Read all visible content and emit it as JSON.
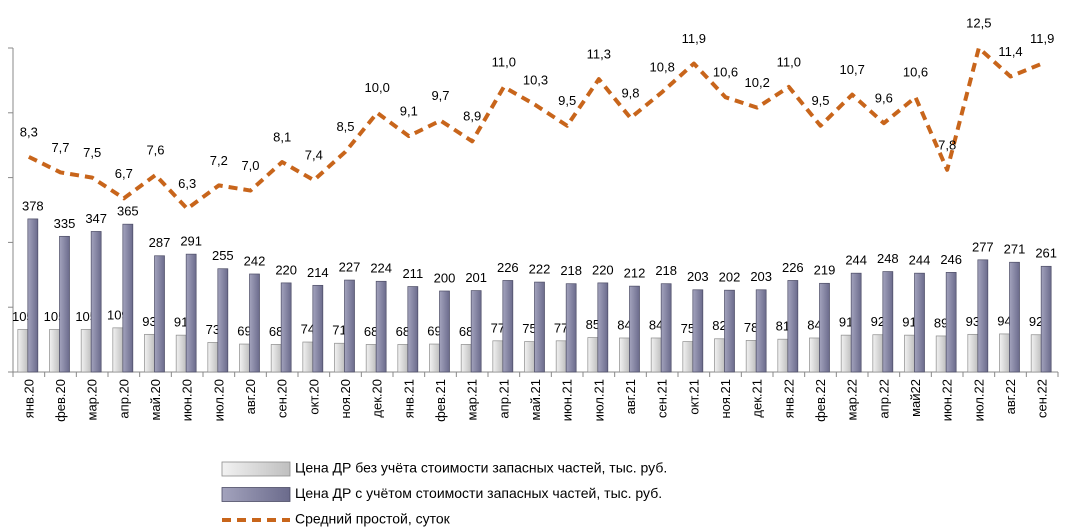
{
  "chart_data": {
    "type": "bar",
    "categories": [
      "янв.20",
      "фев.20",
      "мар.20",
      "апр.20",
      "май.20",
      "июн.20",
      "июл.20",
      "авг.20",
      "сен.20",
      "окт.20",
      "ноя.20",
      "дек.20",
      "янв.21",
      "фев.21",
      "мар.21",
      "апр.21",
      "май.21",
      "июн.21",
      "июл.21",
      "авг.21",
      "сен.21",
      "окт.21",
      "ноя.21",
      "дек.21",
      "янв.22",
      "фев.22",
      "мар.22",
      "апр.22",
      "май22",
      "июн.22",
      "июл.22",
      "авг.22",
      "сен.22"
    ],
    "series": [
      {
        "name": "Цена ДР без учёта стоимости запасных частей, тыс. руб.",
        "color": "#d9d9d9",
        "values": [
          105,
          105,
          105,
          109,
          93,
          91,
          73,
          69,
          68,
          74,
          71,
          68,
          68,
          69,
          68,
          77,
          75,
          77,
          85,
          84,
          84,
          75,
          82,
          78,
          81,
          84,
          91,
          92,
          91,
          89,
          93,
          94,
          92
        ]
      },
      {
        "name": "Цена ДР с учётом стоимости запасных частей, тыс. руб.",
        "color": "#8585a3",
        "values": [
          378,
          335,
          347,
          365,
          287,
          291,
          255,
          242,
          220,
          214,
          227,
          224,
          211,
          200,
          201,
          226,
          222,
          218,
          220,
          212,
          218,
          203,
          202,
          203,
          226,
          219,
          244,
          248,
          244,
          246,
          277,
          271,
          261
        ]
      },
      {
        "name": "Средний простой, суток",
        "type": "line",
        "axis": "y2",
        "color": "#c8651b",
        "values": [
          8.3,
          7.7,
          7.5,
          6.7,
          7.6,
          6.3,
          7.2,
          7.0,
          8.1,
          7.4,
          8.5,
          10.0,
          9.1,
          9.7,
          8.9,
          11.0,
          10.3,
          9.5,
          11.3,
          9.8,
          10.8,
          11.9,
          10.6,
          10.2,
          11.0,
          9.5,
          10.7,
          9.6,
          10.6,
          7.8,
          12.5,
          11.4,
          11.9
        ],
        "value_labels": [
          "8,3",
          "7,7",
          "7,5",
          "6,7",
          "7,6",
          "6,3",
          "7,2",
          "7,0",
          "8,1",
          "7,4",
          "8,5",
          "10,0",
          "9,1",
          "9,7",
          "8,9",
          "11,0",
          "10,3",
          "9,5",
          "11,3",
          "9,8",
          "10,8",
          "11,9",
          "10,6",
          "10,2",
          "11,0",
          "9,5",
          "10,7",
          "9,6",
          "10,6",
          "7,8",
          "12,5",
          "11,4",
          "11,9"
        ]
      }
    ],
    "ylim": [
      0,
      800
    ],
    "yticks": [
      0,
      160,
      320,
      480,
      640,
      800
    ],
    "y2lim": [
      0,
      12.5
    ]
  }
}
